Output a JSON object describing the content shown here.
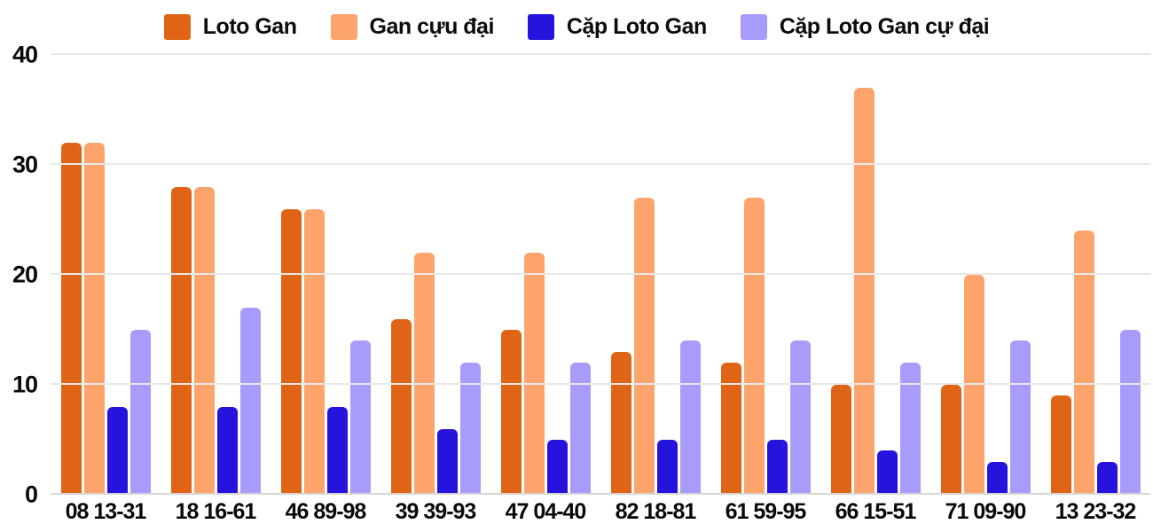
{
  "chart_data": {
    "type": "bar",
    "title": "",
    "xlabel": "",
    "ylabel": "",
    "categories": [
      "08 13-31",
      "18 16-61",
      "46 89-98",
      "39 39-93",
      "47 04-40",
      "82 18-81",
      "61 59-95",
      "66 15-51",
      "71 09-90",
      "13 23-32"
    ],
    "series": [
      {
        "name": "Loto Gan",
        "color": "#E06416",
        "values": [
          32,
          28,
          26,
          16,
          15,
          13,
          12,
          10,
          10,
          9
        ]
      },
      {
        "name": "Gan cựu đại",
        "color": "#FCA46C",
        "values": [
          32,
          28,
          26,
          22,
          22,
          27,
          27,
          37,
          20,
          24
        ]
      },
      {
        "name": "Cặp Loto Gan",
        "color": "#2613DC",
        "values": [
          8,
          8,
          8,
          6,
          5,
          5,
          5,
          4,
          3,
          3
        ]
      },
      {
        "name": "Cặp Loto Gan cự đại",
        "color": "#A79BFB",
        "values": [
          15,
          17,
          14,
          12,
          12,
          14,
          14,
          12,
          14,
          15
        ]
      }
    ],
    "yticks": [
      0,
      10,
      20,
      30,
      40
    ],
    "ylim": [
      0,
      40
    ],
    "grid": true,
    "legend_position": "top",
    "background_color": "#FFFFFF",
    "gridline_color": "#E8E8E8",
    "axis_text_color": "#0A0A0A"
  }
}
